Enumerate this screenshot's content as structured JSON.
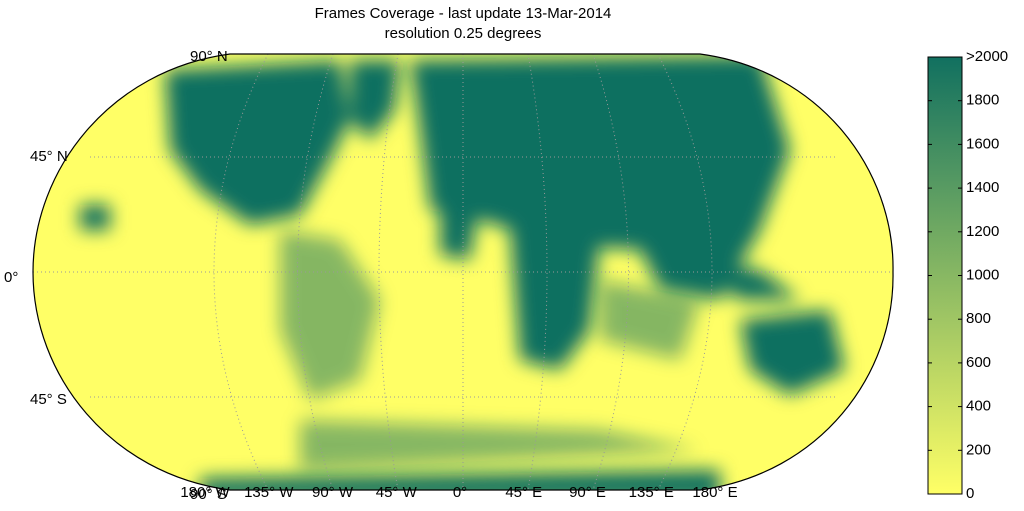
{
  "title": "Frames Coverage - last update 13-Mar-2014",
  "subtitle": "resolution 0.25 degrees",
  "map": {
    "lat_labels": [
      "90° N",
      "45° N",
      "0°",
      "45° S",
      "90° S"
    ],
    "lon_labels": [
      "180° W",
      "135° W",
      "90° W",
      "45° W",
      "0°",
      "45° E",
      "90° E",
      "135° E",
      "180° E"
    ]
  },
  "colorbar": {
    "lim": [
      0,
      2000
    ],
    "colors": [
      "#ffff66",
      "#117060"
    ],
    "ticks": [
      0,
      200,
      400,
      600,
      800,
      1000,
      1200,
      1400,
      1600,
      1800,
      {
        "value": 2000,
        "label": ">2000"
      }
    ]
  }
}
